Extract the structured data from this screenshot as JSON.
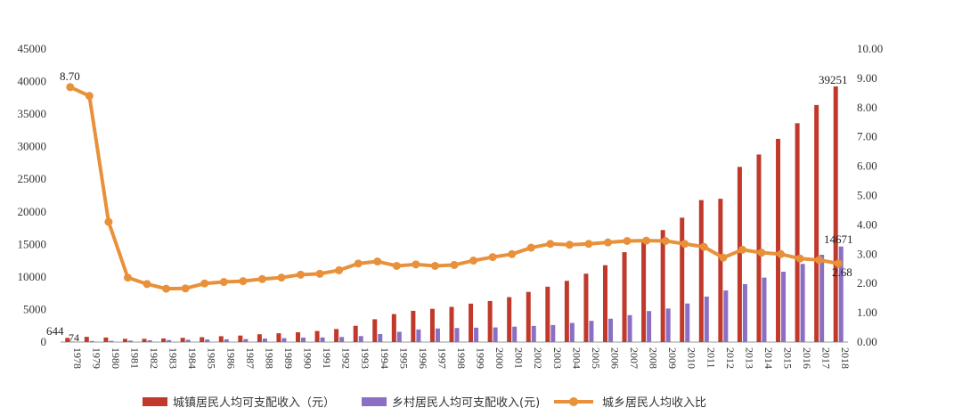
{
  "chart_data": {
    "type": "bar+line",
    "categories": [
      "1978",
      "1979",
      "1980",
      "1981",
      "1982",
      "1983",
      "1984",
      "1985",
      "1986",
      "1987",
      "1988",
      "1989",
      "1990",
      "1991",
      "1992",
      "1993",
      "1994",
      "1995",
      "1996",
      "1997",
      "1998",
      "1999",
      "2000",
      "2001",
      "2002",
      "2003",
      "2004",
      "2005",
      "2006",
      "2007",
      "2008",
      "2009",
      "2010",
      "2011",
      "2012",
      "2013",
      "2014",
      "2015",
      "2016",
      "2017",
      "2018"
    ],
    "series": [
      {
        "name": "城镇居民人均可支配收入（元）",
        "type": "bar",
        "axis": "left",
        "color": "#c0392b",
        "values": [
          644,
          800,
          700,
          500,
          500,
          550,
          650,
          750,
          900,
          1000,
          1200,
          1350,
          1500,
          1700,
          2000,
          2500,
          3500,
          4300,
          4800,
          5100,
          5400,
          5900,
          6300,
          6900,
          7700,
          8500,
          9400,
          10500,
          11800,
          13800,
          15800,
          17200,
          19100,
          21800,
          22000,
          26900,
          28800,
          31200,
          33600,
          36400,
          39251
        ]
      },
      {
        "name": "乡村居民人均可支配收入(元)",
        "type": "bar",
        "axis": "left",
        "color": "#8b6fc4",
        "values": [
          74,
          160,
          190,
          220,
          270,
          310,
          355,
          400,
          420,
          460,
          540,
          600,
          690,
          710,
          780,
          920,
          1230,
          1580,
          1930,
          2090,
          2160,
          2210,
          2250,
          2370,
          2480,
          2620,
          2940,
          3260,
          3590,
          4140,
          4760,
          5150,
          5920,
          6980,
          7920,
          8900,
          9900,
          10800,
          12000,
          13400,
          14671
        ]
      },
      {
        "name": "城乡居民人均收入比",
        "type": "line",
        "axis": "right",
        "color": "#e8913a",
        "values": [
          8.7,
          8.4,
          4.1,
          2.2,
          1.98,
          1.82,
          1.83,
          2.0,
          2.05,
          2.08,
          2.15,
          2.2,
          2.3,
          2.33,
          2.45,
          2.68,
          2.75,
          2.6,
          2.65,
          2.6,
          2.63,
          2.78,
          2.9,
          3.0,
          3.22,
          3.35,
          3.32,
          3.35,
          3.4,
          3.45,
          3.46,
          3.45,
          3.35,
          3.25,
          2.88,
          3.15,
          3.05,
          3.0,
          2.85,
          2.8,
          2.68
        ]
      }
    ],
    "left_axis": {
      "min": 0,
      "max": 45000,
      "step": 5000,
      "ticks": [
        "0",
        "5000",
        "10000",
        "15000",
        "20000",
        "25000",
        "30000",
        "35000",
        "40000",
        "45000"
      ]
    },
    "right_axis": {
      "min": 0,
      "max": 10,
      "step": 1,
      "ticks": [
        "0.00",
        "1.00",
        "2.00",
        "3.00",
        "4.00",
        "5.00",
        "6.00",
        "7.00",
        "8.00",
        "9.00",
        "10.00"
      ]
    },
    "annotations": {
      "urban_first": "644",
      "rural_first": "74",
      "ratio_first": "8.70",
      "urban_last": "39251",
      "rural_last": "14671",
      "ratio_last": "2.68"
    },
    "legend_position": "bottom",
    "grid": false
  }
}
